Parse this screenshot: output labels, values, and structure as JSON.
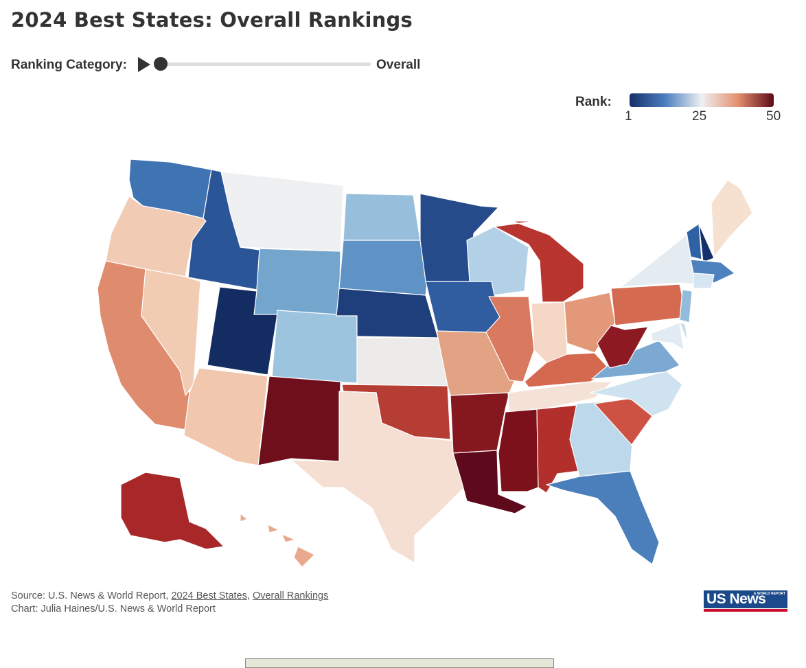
{
  "title": "2024 Best States: Overall Rankings",
  "controls": {
    "label": "Ranking Category:",
    "value": "Overall",
    "play_icon": "play-icon",
    "slider_position": 0
  },
  "legend": {
    "title": "Rank:",
    "ticks": [
      "1",
      "25",
      "50"
    ],
    "colors": [
      "#15306a",
      "#4d7fbf",
      "#eef0f1",
      "#e3906f",
      "#5e0a17"
    ]
  },
  "source": {
    "prefix": "Source: U.S. News & World Report, ",
    "link1": "2024 Best States",
    "sep": ", ",
    "link2": "Overall Rankings",
    "credit": "Chart: Julia Haines/U.S. News & World Report"
  },
  "logo": {
    "main": "US News",
    "sub": "& WORLD REPORT"
  },
  "states": [
    {
      "id": "WA",
      "name": "Washington",
      "color": "#3f73b2"
    },
    {
      "id": "OR",
      "name": "Oregon",
      "color": "#f2cbb4"
    },
    {
      "id": "CA",
      "name": "California",
      "color": "#df8b6e"
    },
    {
      "id": "NV",
      "name": "Nevada",
      "color": "#f2cbb3"
    },
    {
      "id": "ID",
      "name": "Idaho",
      "color": "#2a5597"
    },
    {
      "id": "MT",
      "name": "Montana",
      "color": "#eef0f1"
    },
    {
      "id": "WY",
      "name": "Wyoming",
      "color": "#74a6cd"
    },
    {
      "id": "UT",
      "name": "Utah",
      "color": "#132c62"
    },
    {
      "id": "AZ",
      "name": "Arizona",
      "color": "#f1c7ae"
    },
    {
      "id": "CO",
      "name": "Colorado",
      "color": "#9cc4df"
    },
    {
      "id": "NM",
      "name": "New Mexico",
      "color": "#6e0f1b"
    },
    {
      "id": "ND",
      "name": "North Dakota",
      "color": "#97bfdb"
    },
    {
      "id": "SD",
      "name": "South Dakota",
      "color": "#5f93c6"
    },
    {
      "id": "NE",
      "name": "Nebraska",
      "color": "#1f3f7c"
    },
    {
      "id": "KS",
      "name": "Kansas",
      "color": "#edebe9"
    },
    {
      "id": "OK",
      "name": "Oklahoma",
      "color": "#b63d33"
    },
    {
      "id": "TX",
      "name": "Texas",
      "color": "#f5dfd3"
    },
    {
      "id": "MN",
      "name": "Minnesota",
      "color": "#264b8a"
    },
    {
      "id": "IA",
      "name": "Iowa",
      "color": "#2f5d9f"
    },
    {
      "id": "MO",
      "name": "Missouri",
      "color": "#e2a384"
    },
    {
      "id": "AR",
      "name": "Arkansas",
      "color": "#85171f"
    },
    {
      "id": "LA",
      "name": "Louisiana",
      "color": "#5e0a1c"
    },
    {
      "id": "WI",
      "name": "Wisconsin",
      "color": "#b2d1e6"
    },
    {
      "id": "IL",
      "name": "Illinois",
      "color": "#d9795f"
    },
    {
      "id": "MI",
      "name": "Michigan",
      "color": "#b8342f"
    },
    {
      "id": "IN",
      "name": "Indiana",
      "color": "#f5d7c5"
    },
    {
      "id": "OH",
      "name": "Ohio",
      "color": "#e4987a"
    },
    {
      "id": "KY",
      "name": "Kentucky",
      "color": "#d5694f"
    },
    {
      "id": "TN",
      "name": "Tennessee",
      "color": "#f5e2d7"
    },
    {
      "id": "MS",
      "name": "Mississippi",
      "color": "#7c111c"
    },
    {
      "id": "AL",
      "name": "Alabama",
      "color": "#b22f2c"
    },
    {
      "id": "GA",
      "name": "Georgia",
      "color": "#bdd8ea"
    },
    {
      "id": "FL",
      "name": "Florida",
      "color": "#4a7fbb"
    },
    {
      "id": "SC",
      "name": "South Carolina",
      "color": "#cd5244"
    },
    {
      "id": "NC",
      "name": "North Carolina",
      "color": "#cfe2ef"
    },
    {
      "id": "VA",
      "name": "Virginia",
      "color": "#7ca9d1"
    },
    {
      "id": "WV",
      "name": "West Virginia",
      "color": "#8d1a22"
    },
    {
      "id": "PA",
      "name": "Pennsylvania",
      "color": "#d46a50"
    },
    {
      "id": "NY",
      "name": "New York",
      "color": "#e4ecf2"
    },
    {
      "id": "ME",
      "name": "Maine",
      "color": "#f6e0d0"
    },
    {
      "id": "VT",
      "name": "Vermont",
      "color": "#2f62a4"
    },
    {
      "id": "NH",
      "name": "New Hampshire",
      "color": "#15306a"
    },
    {
      "id": "MA",
      "name": "Massachusetts",
      "color": "#4e82bf"
    },
    {
      "id": "CT",
      "name": "Connecticut",
      "color": "#d5e5f1"
    },
    {
      "id": "NJ",
      "name": "New Jersey",
      "color": "#93bbdb"
    },
    {
      "id": "MD",
      "name": "Maryland",
      "color": "#e2ebf3"
    },
    {
      "id": "DE",
      "name": "Delaware",
      "color": "#c8dcec"
    },
    {
      "id": "AK",
      "name": "Alaska",
      "color": "#a8282a"
    },
    {
      "id": "HI",
      "name": "Hawaii",
      "color": "#e9a98c"
    }
  ]
}
